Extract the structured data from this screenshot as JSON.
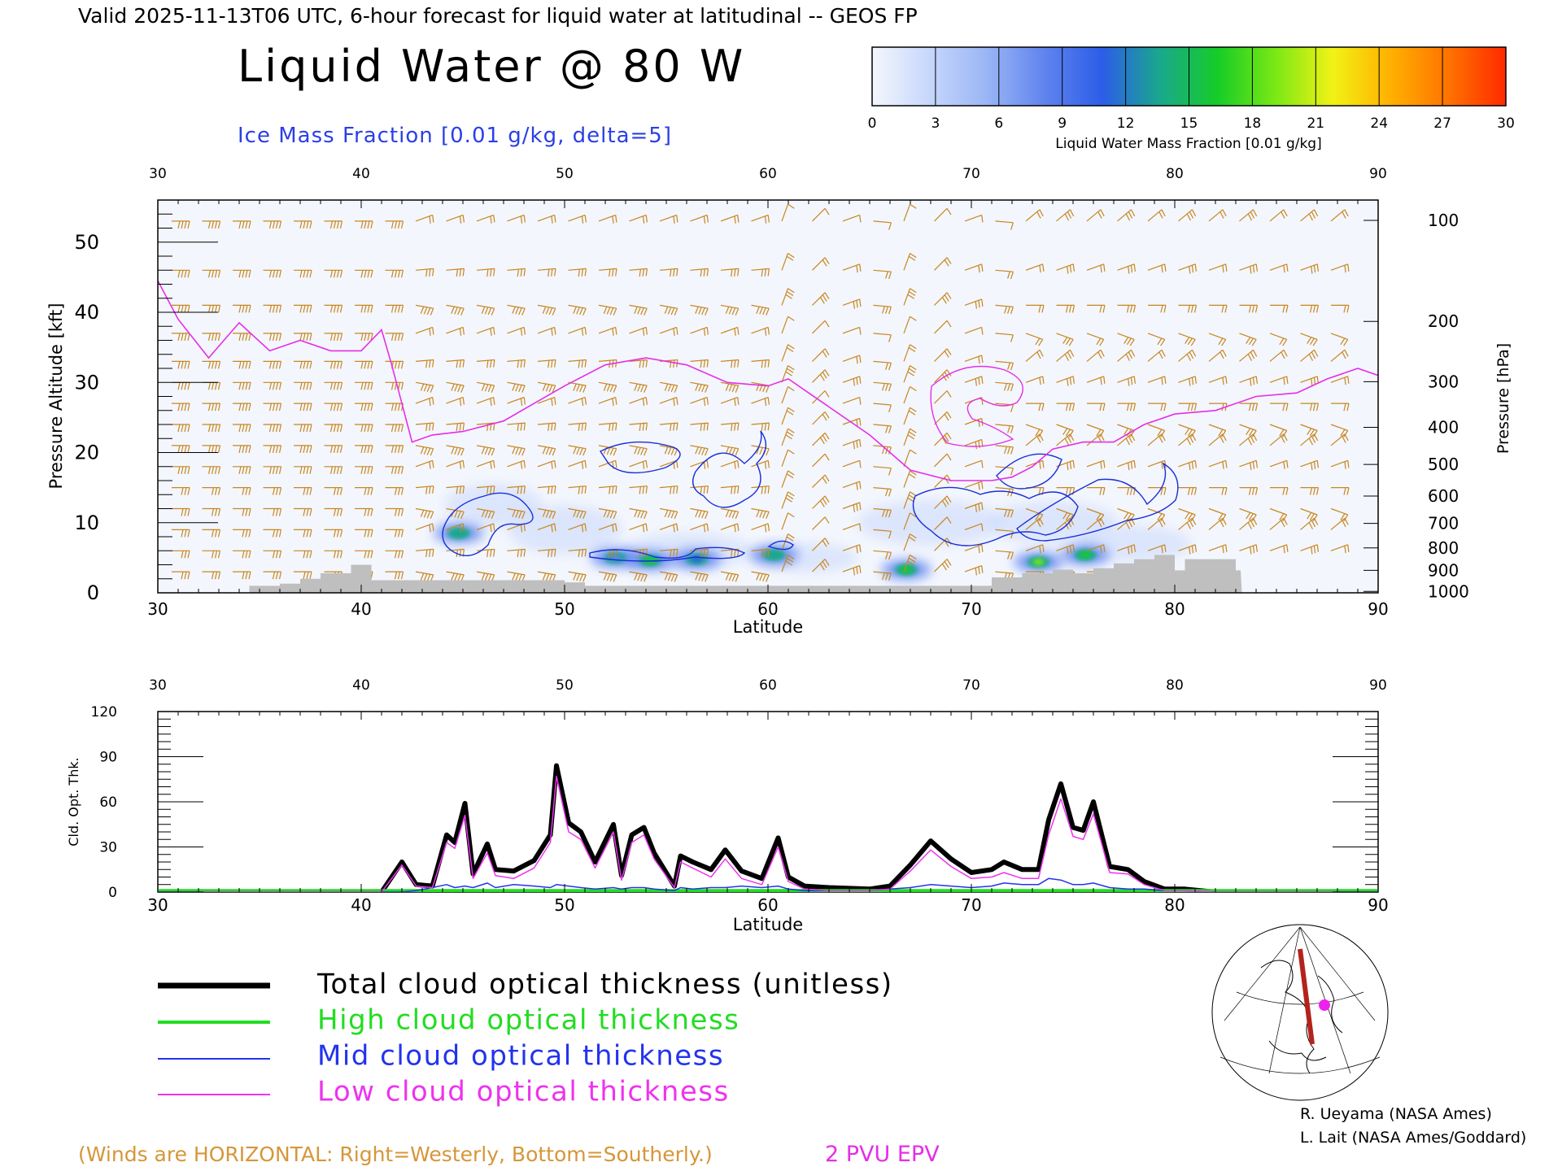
{
  "header": {
    "valid_line": "Valid 2025-11-13T06 UTC, 6-hour forecast for liquid water at latitudinal -- GEOS FP",
    "title": "Liquid Water @ 80 W",
    "subtitle": "Ice Mass Fraction [0.01 g/kg, delta=5]"
  },
  "colorbar": {
    "ticks": [
      "0",
      "3",
      "6",
      "9",
      "12",
      "15",
      "18",
      "21",
      "24",
      "27",
      "30"
    ],
    "label": "Liquid Water Mass Fraction [0.01 g/kg]",
    "colors": [
      "#f4f6fd",
      "#c6d7fb",
      "#9ab5f5",
      "#5f83ee",
      "#2c5de8",
      "#1aa88c",
      "#16cc27",
      "#7ae815",
      "#f2f215",
      "#ffb000",
      "#ff7300",
      "#ff2a00"
    ]
  },
  "footer": {
    "winds_note": "(Winds are HORIZONTAL: Right=Westerly, Bottom=Southerly.)",
    "pvu_label": "2 PVU EPV",
    "credit1": "R. Ueyama (NASA Ames)",
    "credit2": "L. Lait (NASA Ames/Goddard)"
  },
  "legend": [
    {
      "label": "Total cloud optical thickness (unitless)",
      "color": "#000000"
    },
    {
      "label": "High cloud optical thickness",
      "color": "#22dd22"
    },
    {
      "label": "Mid cloud optical thickness",
      "color": "#2233ee"
    },
    {
      "label": "Low cloud optical thickness",
      "color": "#ee33ee"
    }
  ],
  "colors": {
    "wind_barb": "#c8861e",
    "epv": "#e62ee6",
    "ice_contour": "#1a2fd6",
    "terrain": "#bfbfbf",
    "total": "#000000",
    "high": "#22dd22",
    "mid": "#2233ee",
    "low": "#ee33ee"
  },
  "chart_data": [
    {
      "type": "heatmap",
      "xlabel": "Latitude",
      "ylabel": "Pressure Altitude [kft]",
      "ylabel_right": "Pressure [hPa]",
      "xlim": [
        30,
        90
      ],
      "ylim": [
        0,
        56
      ],
      "x_ticks": [
        "30",
        "40",
        "50",
        "60",
        "70",
        "80",
        "90"
      ],
      "y_ticks": [
        "0",
        "10",
        "20",
        "30",
        "40",
        "50"
      ],
      "pressure_ticks": [
        {
          "label": "100",
          "kft": 53.1
        },
        {
          "label": "200",
          "kft": 38.7
        },
        {
          "label": "300",
          "kft": 30.1
        },
        {
          "label": "400",
          "kft": 23.6
        },
        {
          "label": "500",
          "kft": 18.3
        },
        {
          "label": "600",
          "kft": 13.8
        },
        {
          "label": "700",
          "kft": 9.9
        },
        {
          "label": "800",
          "kft": 6.4
        },
        {
          "label": "900",
          "kft": 3.2
        },
        {
          "label": "1000",
          "kft": 0.2
        }
      ],
      "epv_2pvu": {
        "lat": [
          30,
          31,
          32.5,
          34,
          35.5,
          37,
          38.5,
          40,
          41,
          41.5,
          42.5,
          43.5,
          45,
          47,
          48.5,
          50,
          52,
          54,
          56,
          58,
          60,
          61,
          62,
          63,
          65,
          67,
          69,
          71,
          72,
          73,
          74,
          75.5,
          77,
          78.5,
          80,
          82,
          84,
          86,
          87.5,
          89,
          90
        ],
        "kft": [
          44.5,
          39,
          33.5,
          38.5,
          34.5,
          36,
          34.5,
          34.5,
          37.5,
          32.5,
          21.5,
          22.5,
          23,
          24.5,
          27,
          29.5,
          32.5,
          33.5,
          32.5,
          30,
          29.5,
          30.5,
          28.5,
          26.5,
          22.5,
          17.5,
          16,
          16,
          16.5,
          18,
          20.5,
          21.5,
          21.5,
          24,
          25.5,
          26,
          28,
          28.5,
          30.5,
          32,
          31
        ]
      },
      "liquid_water_blobs": [
        {
          "lat": 44.8,
          "kft": 8.5,
          "value": 14
        },
        {
          "lat": 52.5,
          "kft": 5.0,
          "value": 9
        },
        {
          "lat": 54.2,
          "kft": 4.6,
          "value": 16
        },
        {
          "lat": 56.5,
          "kft": 4.8,
          "value": 10
        },
        {
          "lat": 60.3,
          "kft": 5.4,
          "value": 13
        },
        {
          "lat": 66.8,
          "kft": 3.3,
          "value": 15
        },
        {
          "lat": 73.3,
          "kft": 4.4,
          "value": 19
        },
        {
          "lat": 75.6,
          "kft": 5.4,
          "value": 16
        }
      ],
      "terrain": {
        "lat": [
          34.5,
          36,
          37,
          38,
          39.5,
          40.5,
          46,
          50,
          51,
          55,
          60,
          65,
          68,
          69.5,
          70.5,
          71,
          72.5,
          74,
          75,
          76,
          77,
          78,
          79,
          80,
          80.5,
          81,
          82,
          83
        ],
        "kft": [
          1,
          1.3,
          2,
          2.8,
          4,
          1.8,
          1.8,
          1.5,
          1,
          1,
          1,
          1,
          1,
          1,
          1,
          2.2,
          2.8,
          3.3,
          2.8,
          3.5,
          4.2,
          4.8,
          5.4,
          3.2,
          4.8,
          4.8,
          4.8,
          3.2
        ]
      },
      "wind_barb_field": "layered westerly/southwesterly barbs, strongest aloft at 30-40 N"
    },
    {
      "type": "line",
      "xlabel": "Latitude",
      "ylabel": "Cld. Opt. Thk.",
      "xlim": [
        30,
        90
      ],
      "ylim": [
        0,
        120
      ],
      "x_ticks": [
        "30",
        "40",
        "50",
        "60",
        "70",
        "80",
        "90"
      ],
      "y_ticks": [
        "0",
        "30",
        "60",
        "90",
        "120"
      ],
      "x": [
        30,
        41,
        42,
        42.7,
        43.5,
        44.2,
        44.6,
        45.1,
        45.5,
        46.2,
        46.6,
        47.5,
        48.5,
        49.3,
        49.6,
        50.2,
        50.8,
        51.5,
        52.4,
        52.8,
        53.3,
        53.9,
        54.4,
        55.4,
        55.7,
        56.3,
        57.2,
        57.9,
        58.7,
        59.7,
        60.5,
        61,
        61.8,
        63,
        65,
        66,
        67,
        68,
        69,
        70,
        71,
        71.6,
        72.5,
        73.3,
        73.8,
        74.4,
        75,
        75.5,
        76,
        76.8,
        77.7,
        78.5,
        79.5,
        80.5,
        82,
        90
      ],
      "series": [
        {
          "name": "Total cloud optical thickness (unitless)",
          "values": [
            0,
            0,
            20,
            5,
            4,
            38,
            33,
            59,
            12,
            32,
            15,
            14,
            21,
            38,
            84,
            46,
            40,
            20,
            45,
            11,
            38,
            43,
            26,
            4,
            24,
            20,
            15,
            28,
            14,
            9,
            36,
            10,
            4,
            3,
            2,
            4,
            18,
            34,
            22,
            13,
            15,
            20,
            15,
            15,
            48,
            72,
            43,
            41,
            60,
            17,
            15,
            7,
            2,
            2,
            0,
            0
          ]
        },
        {
          "name": "High cloud optical thickness",
          "values": [
            1,
            1,
            1,
            1,
            1,
            1,
            1,
            1,
            1,
            1,
            1,
            1,
            1,
            1,
            1,
            1,
            1,
            1,
            1,
            1,
            1,
            1,
            1,
            1,
            1,
            1,
            1,
            1,
            1,
            1,
            1,
            1,
            1,
            1,
            1,
            1,
            1,
            1,
            1,
            1,
            1,
            1,
            1,
            1,
            1,
            1,
            1,
            1,
            1,
            1,
            1,
            1,
            1,
            1,
            1,
            1
          ]
        },
        {
          "name": "Mid cloud optical thickness",
          "values": [
            0,
            0,
            0,
            1,
            3,
            5,
            3,
            4,
            3,
            6,
            3,
            5,
            4,
            3,
            5,
            4,
            3,
            2,
            3,
            2,
            3,
            3,
            2,
            1,
            3,
            2,
            3,
            3,
            4,
            3,
            4,
            2,
            1,
            1,
            1,
            2,
            3,
            5,
            4,
            3,
            4,
            6,
            5,
            5,
            9,
            8,
            5,
            5,
            6,
            3,
            2,
            2,
            1,
            1,
            0,
            0
          ]
        },
        {
          "name": "Low cloud optical thickness",
          "values": [
            0,
            0,
            18,
            4,
            3,
            33,
            29,
            51,
            9,
            26,
            11,
            9,
            16,
            33,
            77,
            40,
            35,
            16,
            40,
            8,
            33,
            38,
            22,
            3,
            20,
            16,
            10,
            22,
            9,
            5,
            30,
            7,
            2,
            1,
            1,
            2,
            14,
            28,
            17,
            9,
            10,
            13,
            9,
            9,
            38,
            62,
            37,
            35,
            52,
            13,
            12,
            5,
            1,
            1,
            0,
            0
          ]
        }
      ]
    }
  ]
}
